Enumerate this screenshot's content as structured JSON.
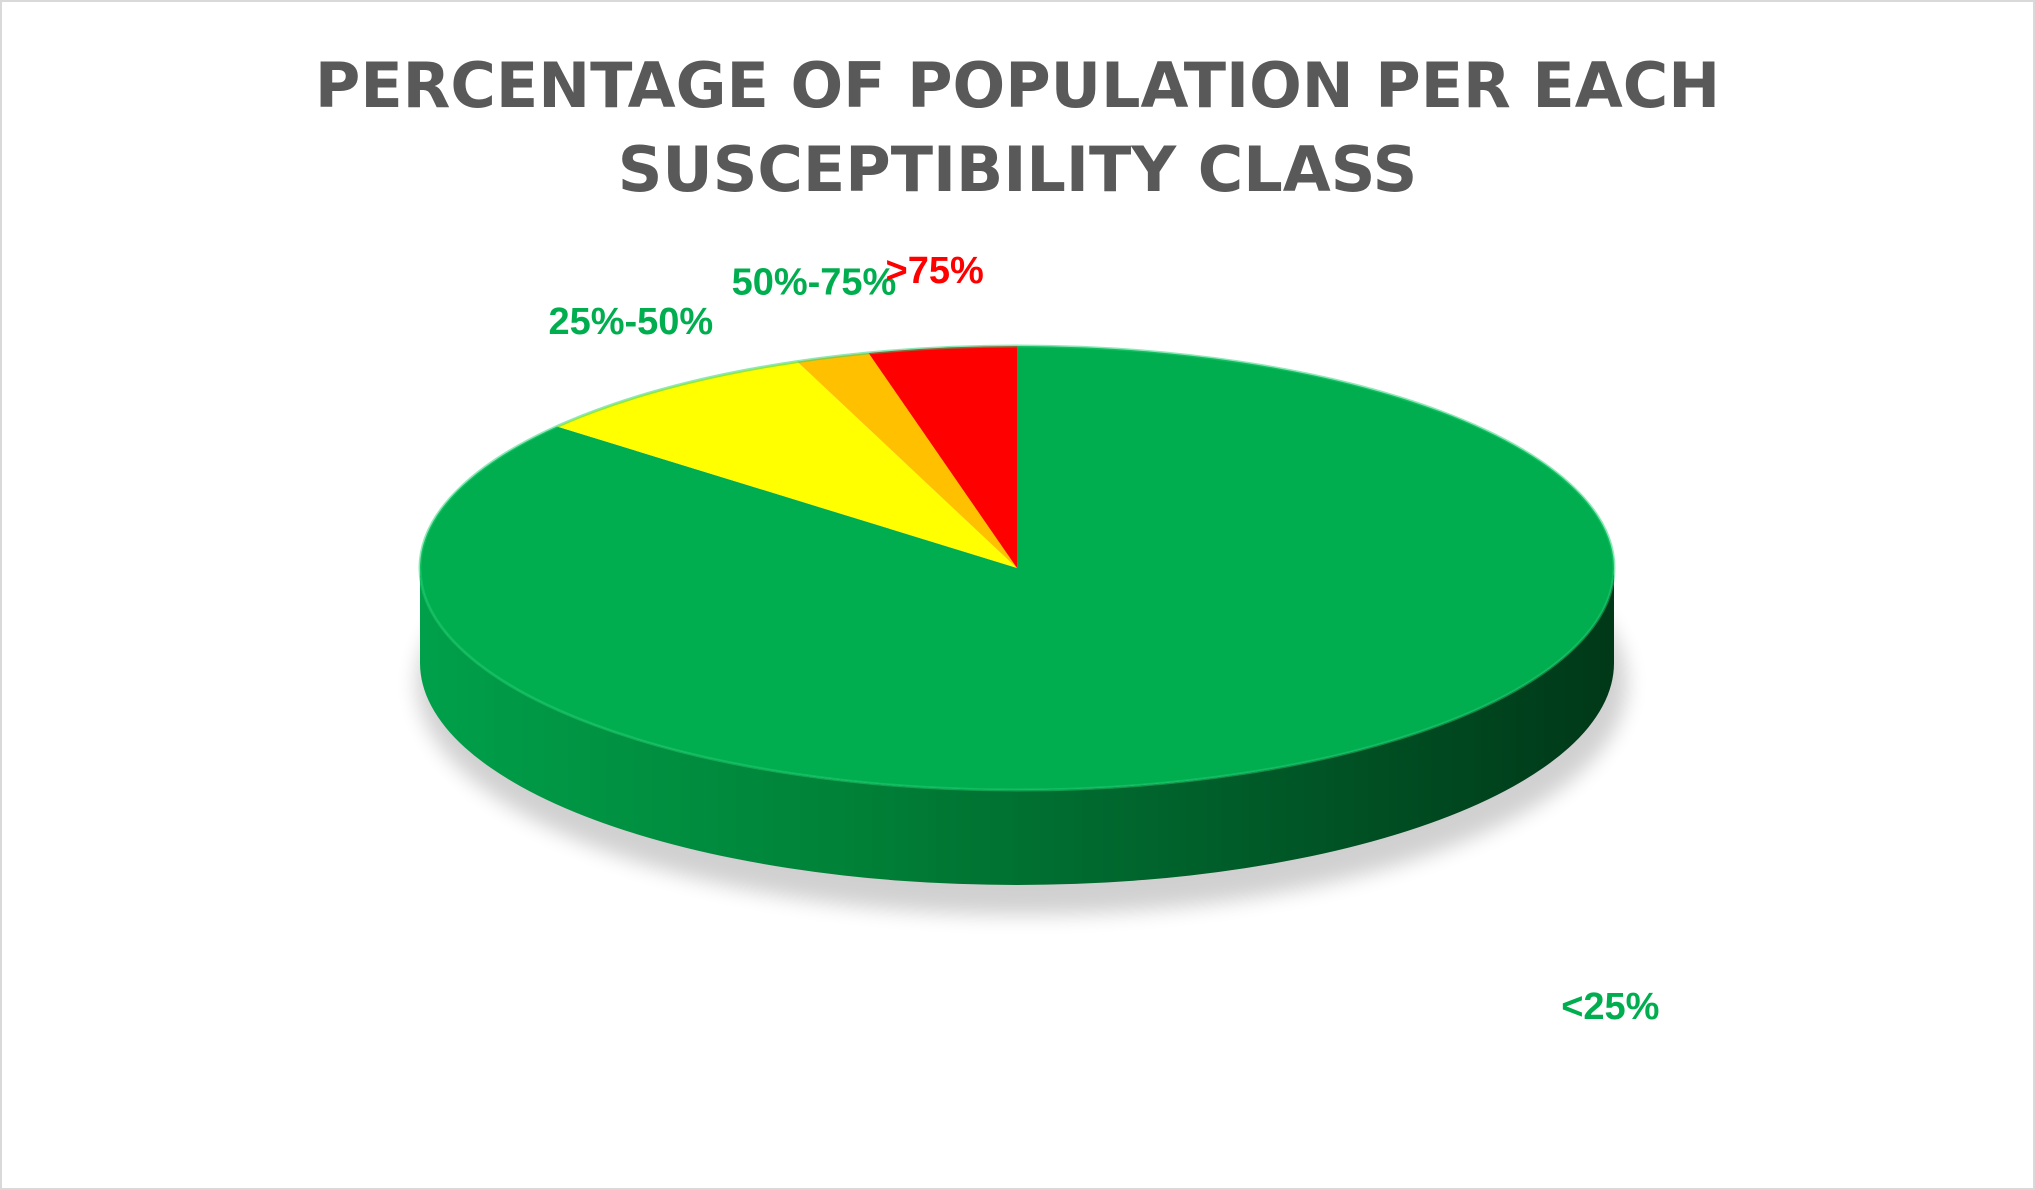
{
  "chart_data": {
    "type": "pie",
    "title_lines": [
      "PERCENTAGE OF POPULATION PER EACH",
      "SUSCEPTIBILITY CLASS"
    ],
    "categories": [
      "<25%",
      "25%-50%",
      "50%-75%",
      ">75%"
    ],
    "values": [
      86,
      8,
      2,
      4
    ],
    "unit": "percent",
    "style": "3d",
    "colors": [
      "#00AD4F",
      "#FFFF00",
      "#FFC000",
      "#FF0000"
    ],
    "label_colors": [
      "#00AD4F",
      "#00AD4F",
      "#00AD4F",
      "#FF0000"
    ],
    "legend": "none"
  }
}
